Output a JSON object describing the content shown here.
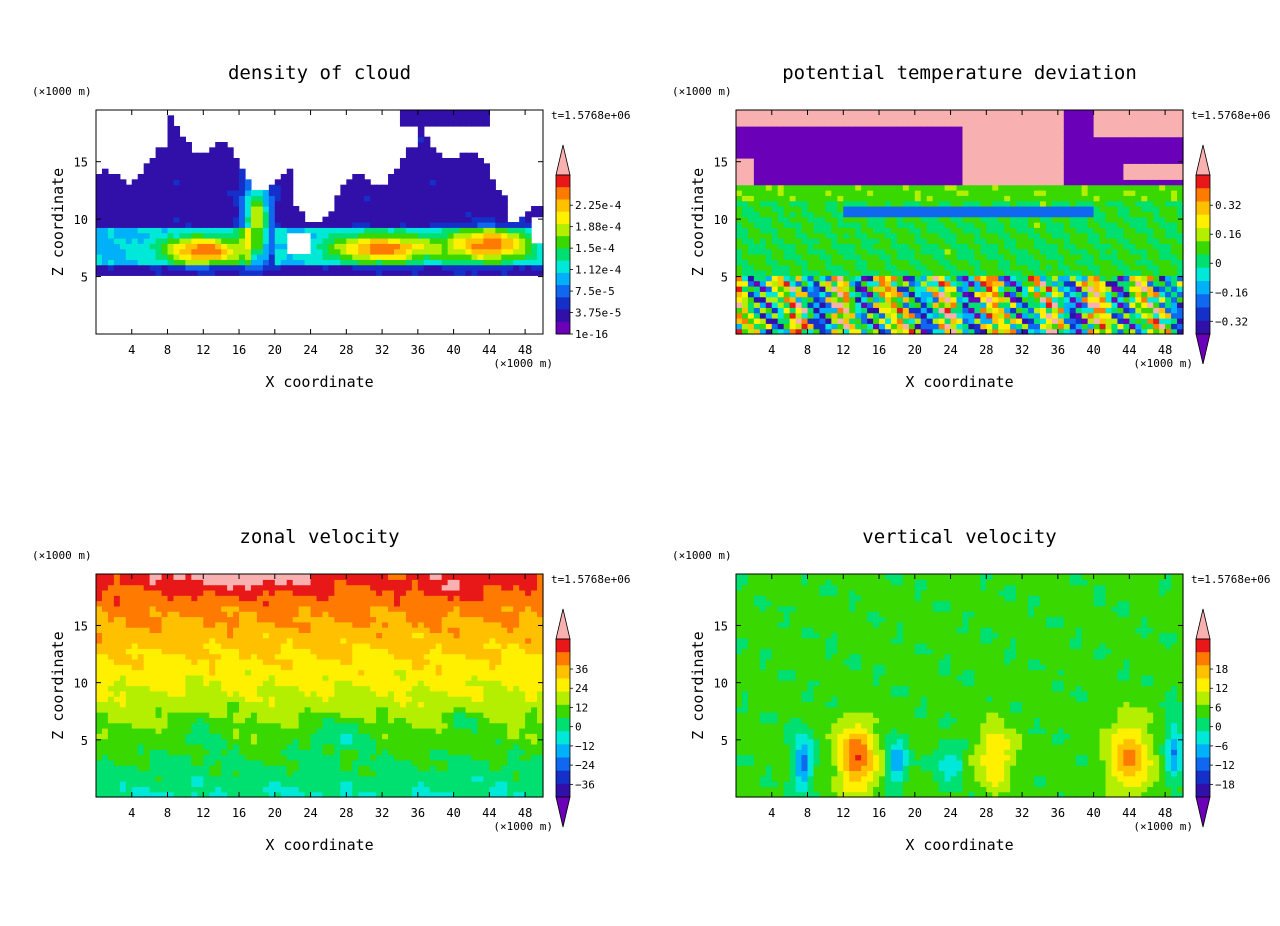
{
  "chart_data": [
    {
      "type": "heatmap",
      "title": "density of cloud",
      "xlabel": "X coordinate",
      "ylabel": "Z coordinate",
      "x_unit": "(×1000 m)",
      "y_unit": "(×1000 m)",
      "time_label": "t=1.5768e+06",
      "xlim": [
        0,
        50
      ],
      "ylim": [
        0,
        19.5
      ],
      "x_ticks": [
        4,
        8,
        12,
        16,
        20,
        24,
        28,
        32,
        36,
        40,
        44,
        48
      ],
      "y_ticks": [
        5,
        10,
        15
      ],
      "colorbar": {
        "labels": [
          "2.25e-4",
          "1.88e-4",
          "1.5e-4",
          "1.12e-4",
          "7.5e-5",
          "3.75e-5",
          "1e-16"
        ],
        "colors": [
          "#f8b0b0",
          "#e81818",
          "#ff7a00",
          "#ffc000",
          "#fff000",
          "#b4ee00",
          "#38d800",
          "#00e070",
          "#00e8d8",
          "#00b0f8",
          "#1068f0",
          "#1430c8",
          "#3010a8",
          "#6a00b8"
        ],
        "extend_max": true,
        "extend_min": false
      },
      "field": "cloud"
    },
    {
      "type": "heatmap",
      "title": "potential temperature deviation",
      "xlabel": "X coordinate",
      "ylabel": "Z coordinate",
      "x_unit": "(×1000 m)",
      "y_unit": "(×1000 m)",
      "time_label": "t=1.5768e+06",
      "xlim": [
        0,
        50
      ],
      "ylim": [
        0,
        19.5
      ],
      "x_ticks": [
        4,
        8,
        12,
        16,
        20,
        24,
        28,
        32,
        36,
        40,
        44,
        48
      ],
      "y_ticks": [
        5,
        10,
        15
      ],
      "colorbar": {
        "labels": [
          "0.32",
          "0.16",
          "0",
          "−0.16",
          "−0.32"
        ],
        "colors": [
          "#f8b0b0",
          "#e81818",
          "#ff7a00",
          "#ffc000",
          "#fff000",
          "#b4ee00",
          "#38d800",
          "#00e070",
          "#00e8d8",
          "#00b0f8",
          "#1068f0",
          "#1430c8",
          "#3010a8",
          "#6a00b8"
        ],
        "extend_max": true,
        "extend_min": true
      },
      "field": "theta"
    },
    {
      "type": "heatmap",
      "title": "zonal velocity",
      "xlabel": "X coordinate",
      "ylabel": "Z coordinate",
      "x_unit": "(×1000 m)",
      "y_unit": "(×1000 m)",
      "time_label": "t=1.5768e+06",
      "xlim": [
        0,
        50
      ],
      "ylim": [
        0,
        19.5
      ],
      "x_ticks": [
        4,
        8,
        12,
        16,
        20,
        24,
        28,
        32,
        36,
        40,
        44,
        48
      ],
      "y_ticks": [
        5,
        10,
        15
      ],
      "colorbar": {
        "labels": [
          "36",
          "24",
          "12",
          "0",
          "−12",
          "−24",
          "−36"
        ],
        "colors": [
          "#f8b0b0",
          "#e81818",
          "#ff7a00",
          "#ffc000",
          "#fff000",
          "#b4ee00",
          "#38d800",
          "#00e070",
          "#00e8d8",
          "#00b0f8",
          "#1068f0",
          "#1430c8",
          "#3010a8",
          "#6a00b8"
        ],
        "extend_max": true,
        "extend_min": true
      },
      "field": "u"
    },
    {
      "type": "heatmap",
      "title": "vertical velocity",
      "xlabel": "X coordinate",
      "ylabel": "Z coordinate",
      "x_unit": "(×1000 m)",
      "y_unit": "(×1000 m)",
      "time_label": "t=1.5768e+06",
      "xlim": [
        0,
        50
      ],
      "ylim": [
        0,
        19.5
      ],
      "x_ticks": [
        4,
        8,
        12,
        16,
        20,
        24,
        28,
        32,
        36,
        40,
        44,
        48
      ],
      "y_ticks": [
        5,
        10,
        15
      ],
      "colorbar": {
        "labels": [
          "18",
          "12",
          "6",
          "0",
          "−6",
          "−12",
          "−18"
        ],
        "colors": [
          "#f8b0b0",
          "#e81818",
          "#ff7a00",
          "#ffc000",
          "#fff000",
          "#b4ee00",
          "#38d800",
          "#00e070",
          "#00e8d8",
          "#00b0f8",
          "#1068f0",
          "#1430c8",
          "#3010a8",
          "#6a00b8"
        ],
        "extend_max": true,
        "extend_min": true
      },
      "field": "w"
    }
  ]
}
